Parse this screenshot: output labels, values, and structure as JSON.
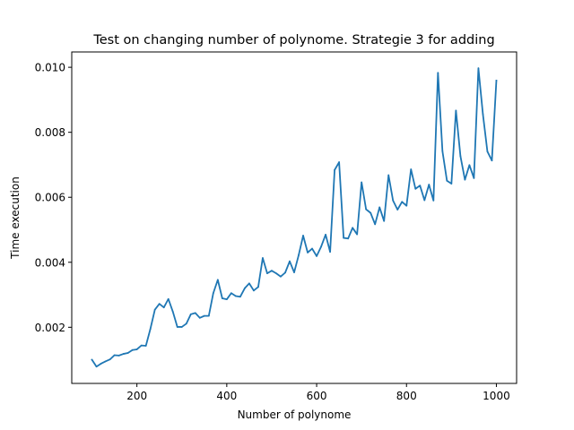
{
  "chart_data": {
    "type": "line",
    "title": "Test on changing number of polynome. Strategie 3 for adding",
    "xlabel": "Number of polynome",
    "ylabel": "Time execution",
    "xlim": [
      55,
      1045
    ],
    "ylim": [
      0.000272,
      0.010472
    ],
    "xticks": [
      200,
      400,
      600,
      800,
      1000
    ],
    "xtick_labels": [
      "200",
      "400",
      "600",
      "800",
      "1000"
    ],
    "yticks": [
      0.002,
      0.004,
      0.006,
      0.008,
      0.01
    ],
    "ytick_labels": [
      "0.002",
      "0.004",
      "0.006",
      "0.008",
      "0.010"
    ],
    "grid": false,
    "line_color": "#1f77b4",
    "series": [
      {
        "x": [
          100,
          110,
          120,
          130,
          140,
          150,
          160,
          170,
          180,
          190,
          200,
          210,
          220,
          230,
          240,
          250,
          260,
          270,
          280,
          290,
          300,
          310,
          320,
          330,
          340,
          350,
          360,
          370,
          380,
          390,
          400,
          410,
          420,
          430,
          440,
          450,
          460,
          470,
          480,
          490,
          500,
          510,
          520,
          530,
          540,
          550,
          560,
          570,
          580,
          590,
          600,
          610,
          620,
          630,
          640,
          650,
          660,
          670,
          680,
          690,
          700,
          710,
          720,
          730,
          740,
          750,
          760,
          770,
          780,
          790,
          800,
          810,
          820,
          830,
          840,
          850,
          860,
          870,
          880,
          890,
          900,
          910,
          920,
          930,
          940,
          950,
          960,
          970,
          980,
          990,
          1000
        ],
        "y": [
          0.001,
          0.00079,
          0.00088,
          0.00095,
          0.00101,
          0.00114,
          0.00113,
          0.00118,
          0.00121,
          0.0013,
          0.00132,
          0.00144,
          0.00143,
          0.00195,
          0.00254,
          0.00272,
          0.00261,
          0.00287,
          0.00248,
          0.00201,
          0.00201,
          0.00211,
          0.0024,
          0.00244,
          0.00229,
          0.00235,
          0.00235,
          0.00305,
          0.00346,
          0.00289,
          0.00286,
          0.00305,
          0.00296,
          0.00294,
          0.0032,
          0.00335,
          0.00313,
          0.00324,
          0.00413,
          0.00366,
          0.00374,
          0.00366,
          0.00356,
          0.00368,
          0.00403,
          0.00369,
          0.00422,
          0.00482,
          0.0043,
          0.00442,
          0.00419,
          0.00448,
          0.00485,
          0.00432,
          0.00684,
          0.00708,
          0.00475,
          0.00473,
          0.00506,
          0.00486,
          0.00646,
          0.00563,
          0.00552,
          0.00517,
          0.00569,
          0.00527,
          0.00668,
          0.0059,
          0.00562,
          0.00586,
          0.00574,
          0.00686,
          0.00626,
          0.00636,
          0.00591,
          0.00639,
          0.0059,
          0.00983,
          0.00742,
          0.00651,
          0.00642,
          0.00867,
          0.00727,
          0.00654,
          0.00699,
          0.00659,
          0.00997,
          0.00856,
          0.00741,
          0.00713,
          0.00959
        ]
      }
    ]
  }
}
